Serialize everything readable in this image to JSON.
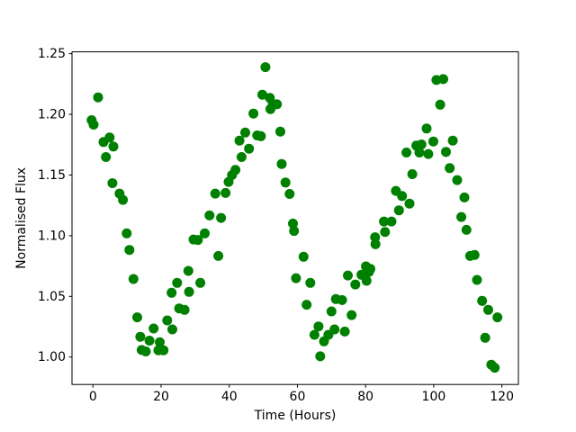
{
  "figure": {
    "background": "#ffffff"
  },
  "chart_data": {
    "type": "scatter",
    "title": "",
    "xlabel": "Time (Hours)",
    "ylabel": "Normalised Flux",
    "legend": null,
    "grid": false,
    "marker": {
      "shape": "circle",
      "color": "#008000",
      "radius_px": 5.5
    },
    "axis_color": "#000000",
    "xlim": [
      -6.15,
      124.85
    ],
    "ylim": [
      0.9774,
      1.2515
    ],
    "xticks": {
      "values": [
        0,
        20,
        40,
        60,
        80,
        100,
        120
      ],
      "labels": [
        "0",
        "20",
        "40",
        "60",
        "80",
        "100",
        "120"
      ]
    },
    "yticks": {
      "values": [
        1.0,
        1.05,
        1.1,
        1.15,
        1.2,
        1.25
      ],
      "labels": [
        "1.00",
        "1.05",
        "1.10",
        "1.15",
        "1.20",
        "1.25"
      ]
    },
    "series": [
      {
        "name": "flux",
        "points": [
          [
            -0.4,
            1.1952
          ],
          [
            0.2,
            1.1915
          ],
          [
            1.5,
            1.214
          ],
          [
            3.1,
            1.1772
          ],
          [
            3.8,
            1.1648
          ],
          [
            4.9,
            1.1809
          ],
          [
            6.0,
            1.1735
          ],
          [
            5.7,
            1.1433
          ],
          [
            7.8,
            1.1347
          ],
          [
            8.8,
            1.1295
          ],
          [
            9.9,
            1.1019
          ],
          [
            10.7,
            1.0883
          ],
          [
            11.9,
            1.0643
          ],
          [
            13.0,
            1.0327
          ],
          [
            13.9,
            1.0167
          ],
          [
            14.3,
            1.0058
          ],
          [
            15.5,
            1.0046
          ],
          [
            16.6,
            1.0135
          ],
          [
            17.8,
            1.0235
          ],
          [
            19.2,
            1.0056
          ],
          [
            19.6,
            1.0122
          ],
          [
            20.7,
            1.0056
          ],
          [
            21.8,
            1.0302
          ],
          [
            23.1,
            1.053
          ],
          [
            23.3,
            1.0228
          ],
          [
            24.7,
            1.0611
          ],
          [
            25.3,
            1.0401
          ],
          [
            26.9,
            1.0389
          ],
          [
            28.0,
            1.071
          ],
          [
            28.2,
            1.0537
          ],
          [
            29.5,
            1.0969
          ],
          [
            30.8,
            1.0965
          ],
          [
            31.5,
            1.0611
          ],
          [
            32.8,
            1.1019
          ],
          [
            34.2,
            1.1167
          ],
          [
            35.9,
            1.1347
          ],
          [
            36.8,
            1.0833
          ],
          [
            37.6,
            1.1147
          ],
          [
            38.9,
            1.1352
          ],
          [
            39.8,
            1.1443
          ],
          [
            40.8,
            1.15
          ],
          [
            41.8,
            1.1542
          ],
          [
            43.0,
            1.1784
          ],
          [
            43.6,
            1.1648
          ],
          [
            44.7,
            1.185
          ],
          [
            45.8,
            1.1717
          ],
          [
            47.1,
            1.2006
          ],
          [
            48.2,
            1.1826
          ],
          [
            49.3,
            1.182
          ],
          [
            49.7,
            1.2162
          ],
          [
            50.6,
            1.2389
          ],
          [
            51.9,
            1.2135
          ],
          [
            52.1,
            1.2043
          ],
          [
            52.8,
            1.2085
          ],
          [
            54.0,
            1.2083
          ],
          [
            55.0,
            1.1858
          ],
          [
            55.4,
            1.1591
          ],
          [
            56.5,
            1.1438
          ],
          [
            57.7,
            1.1344
          ],
          [
            58.7,
            1.11
          ],
          [
            59.0,
            1.1039
          ],
          [
            59.6,
            1.065
          ],
          [
            61.8,
            1.0826
          ],
          [
            62.7,
            1.0431
          ],
          [
            63.8,
            1.0611
          ],
          [
            65.0,
            1.0183
          ],
          [
            66.2,
            1.0252
          ],
          [
            66.7,
            1.0006
          ],
          [
            67.8,
            1.0129
          ],
          [
            69.1,
            1.0183
          ],
          [
            70.0,
            1.0376
          ],
          [
            70.9,
            1.0228
          ],
          [
            71.3,
            1.0478
          ],
          [
            73.1,
            1.047
          ],
          [
            73.9,
            1.021
          ],
          [
            74.8,
            1.0672
          ],
          [
            75.9,
            1.0346
          ],
          [
            77.0,
            1.0598
          ],
          [
            78.8,
            1.0678
          ],
          [
            80.1,
            1.0747
          ],
          [
            80.3,
            1.0628
          ],
          [
            81.0,
            1.0702
          ],
          [
            81.4,
            1.0727
          ],
          [
            82.8,
            1.0987
          ],
          [
            82.9,
            1.093
          ],
          [
            85.4,
            1.1117
          ],
          [
            85.7,
            1.1031
          ],
          [
            87.6,
            1.1117
          ],
          [
            88.9,
            1.1369
          ],
          [
            89.8,
            1.1209
          ],
          [
            90.7,
            1.1327
          ],
          [
            92.0,
            1.1685
          ],
          [
            92.9,
            1.1265
          ],
          [
            93.7,
            1.1507
          ],
          [
            94.9,
            1.1742
          ],
          [
            95.8,
            1.1685
          ],
          [
            96.4,
            1.1752
          ],
          [
            97.9,
            1.1883
          ],
          [
            98.4,
            1.1673
          ],
          [
            99.9,
            1.1776
          ],
          [
            100.8,
            1.2283
          ],
          [
            101.9,
            1.208
          ],
          [
            102.8,
            1.229
          ],
          [
            103.6,
            1.169
          ],
          [
            104.7,
            1.1557
          ],
          [
            105.6,
            1.1784
          ],
          [
            106.9,
            1.1458
          ],
          [
            108.1,
            1.1154
          ],
          [
            109.0,
            1.1315
          ],
          [
            109.6,
            1.1048
          ],
          [
            110.7,
            1.0833
          ],
          [
            112.0,
            1.0841
          ],
          [
            112.7,
            1.0636
          ],
          [
            114.2,
            1.0463
          ],
          [
            115.1,
            1.0159
          ],
          [
            116.0,
            1.0389
          ],
          [
            116.9,
            0.9937
          ],
          [
            117.9,
            0.9912
          ],
          [
            118.7,
            1.0327
          ]
        ]
      }
    ]
  }
}
